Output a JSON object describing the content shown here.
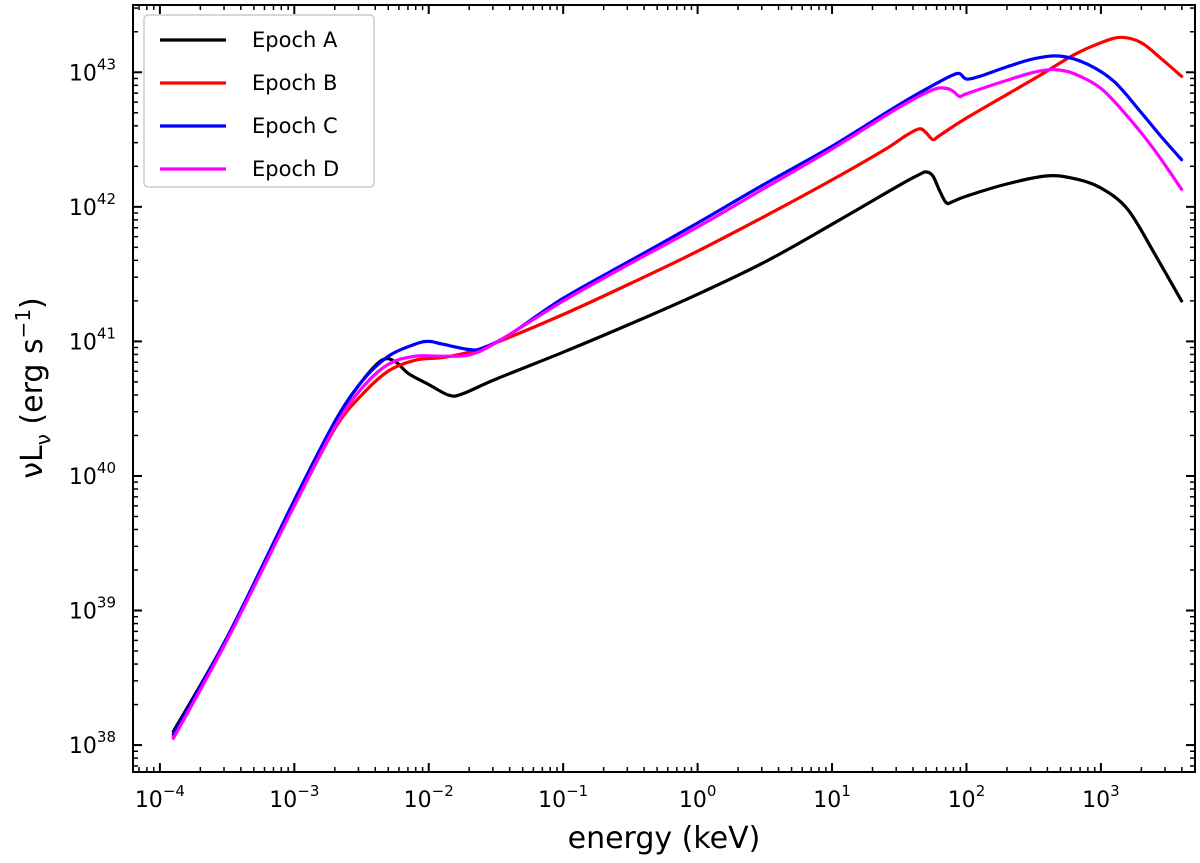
{
  "chart_data": {
    "type": "line",
    "xscale": "log",
    "yscale": "log",
    "xlabel": "energy (keV)",
    "ylabel_main": "νL",
    "ylabel_sub": "ν",
    "ylabel_unit_pre": " (erg s",
    "ylabel_unit_exp": "−1",
    "ylabel_unit_post": ")",
    "xlim_log10": [
      -4.2,
      3.7
    ],
    "ylim_log10": [
      37.8,
      43.5
    ],
    "x_tick_base": "10",
    "x_ticks": [
      {
        "exp": -4,
        "label": "−4"
      },
      {
        "exp": -3,
        "label": "−3"
      },
      {
        "exp": -2,
        "label": "−2"
      },
      {
        "exp": -1,
        "label": "−1"
      },
      {
        "exp": 0,
        "label": "0"
      },
      {
        "exp": 1,
        "label": "1"
      },
      {
        "exp": 2,
        "label": "2"
      },
      {
        "exp": 3,
        "label": "3"
      }
    ],
    "y_tick_base": "10",
    "y_ticks": [
      {
        "exp": 38,
        "label": "38"
      },
      {
        "exp": 39,
        "label": "39"
      },
      {
        "exp": 40,
        "label": "40"
      },
      {
        "exp": 41,
        "label": "41"
      },
      {
        "exp": 42,
        "label": "42"
      },
      {
        "exp": 43,
        "label": "43"
      }
    ],
    "legend_position": "top-left",
    "series": [
      {
        "name": "Epoch A",
        "color": "#000000",
        "points_log10": [
          [
            -3.9,
            38.1
          ],
          [
            -3.5,
            38.8
          ],
          [
            -3.0,
            39.8
          ],
          [
            -2.7,
            40.4
          ],
          [
            -2.5,
            40.7
          ],
          [
            -2.35,
            40.86
          ],
          [
            -2.25,
            40.85
          ],
          [
            -2.15,
            40.76
          ],
          [
            -2.0,
            40.68
          ],
          [
            -1.85,
            40.6
          ],
          [
            -1.75,
            40.61
          ],
          [
            -1.5,
            40.72
          ],
          [
            -1.0,
            40.92
          ],
          [
            -0.5,
            41.13
          ],
          [
            0.0,
            41.35
          ],
          [
            0.5,
            41.59
          ],
          [
            1.0,
            41.87
          ],
          [
            1.5,
            42.16
          ],
          [
            1.65,
            42.24
          ],
          [
            1.7,
            42.26
          ],
          [
            1.75,
            42.23
          ],
          [
            1.8,
            42.12
          ],
          [
            1.85,
            42.03
          ],
          [
            1.9,
            42.04
          ],
          [
            2.0,
            42.08
          ],
          [
            2.3,
            42.17
          ],
          [
            2.6,
            42.23
          ],
          [
            2.8,
            42.21
          ],
          [
            3.0,
            42.14
          ],
          [
            3.2,
            41.98
          ],
          [
            3.4,
            41.65
          ],
          [
            3.6,
            41.3
          ]
        ]
      },
      {
        "name": "Epoch B",
        "color": "#ff0000",
        "points_log10": [
          [
            -3.9,
            38.06
          ],
          [
            -3.5,
            38.8
          ],
          [
            -3.0,
            39.78
          ],
          [
            -2.7,
            40.35
          ],
          [
            -2.5,
            40.6
          ],
          [
            -2.3,
            40.78
          ],
          [
            -2.1,
            40.86
          ],
          [
            -1.9,
            40.88
          ],
          [
            -1.7,
            40.92
          ],
          [
            -1.5,
            40.99
          ],
          [
            -1.0,
            41.2
          ],
          [
            -0.5,
            41.43
          ],
          [
            0.0,
            41.67
          ],
          [
            0.5,
            41.93
          ],
          [
            1.0,
            42.2
          ],
          [
            1.4,
            42.43
          ],
          [
            1.55,
            42.53
          ],
          [
            1.65,
            42.58
          ],
          [
            1.7,
            42.55
          ],
          [
            1.75,
            42.5
          ],
          [
            1.8,
            42.53
          ],
          [
            2.0,
            42.66
          ],
          [
            2.5,
            42.95
          ],
          [
            2.8,
            43.13
          ],
          [
            3.0,
            43.22
          ],
          [
            3.15,
            43.26
          ],
          [
            3.3,
            43.22
          ],
          [
            3.45,
            43.1
          ],
          [
            3.6,
            42.97
          ]
        ]
      },
      {
        "name": "Epoch C",
        "color": "#0000ff",
        "points_log10": [
          [
            -3.9,
            38.08
          ],
          [
            -3.5,
            38.8
          ],
          [
            -3.0,
            39.82
          ],
          [
            -2.7,
            40.4
          ],
          [
            -2.5,
            40.7
          ],
          [
            -2.3,
            40.89
          ],
          [
            -2.1,
            40.98
          ],
          [
            -2.0,
            41.0
          ],
          [
            -1.9,
            40.98
          ],
          [
            -1.7,
            40.94
          ],
          [
            -1.6,
            40.95
          ],
          [
            -1.4,
            41.05
          ],
          [
            -1.0,
            41.32
          ],
          [
            -0.5,
            41.6
          ],
          [
            0.0,
            41.88
          ],
          [
            0.5,
            42.17
          ],
          [
            1.0,
            42.45
          ],
          [
            1.5,
            42.76
          ],
          [
            1.8,
            42.93
          ],
          [
            1.9,
            42.98
          ],
          [
            1.95,
            42.99
          ],
          [
            2.0,
            42.95
          ],
          [
            2.1,
            42.97
          ],
          [
            2.3,
            43.04
          ],
          [
            2.5,
            43.1
          ],
          [
            2.7,
            43.12
          ],
          [
            2.9,
            43.06
          ],
          [
            3.1,
            42.93
          ],
          [
            3.3,
            42.7
          ],
          [
            3.45,
            42.52
          ],
          [
            3.6,
            42.35
          ]
        ]
      },
      {
        "name": "Epoch D",
        "color": "#ff00ff",
        "points_log10": [
          [
            -3.9,
            38.05
          ],
          [
            -3.5,
            38.78
          ],
          [
            -3.0,
            39.78
          ],
          [
            -2.7,
            40.36
          ],
          [
            -2.5,
            40.65
          ],
          [
            -2.3,
            40.83
          ],
          [
            -2.1,
            40.89
          ],
          [
            -1.9,
            40.89
          ],
          [
            -1.7,
            40.9
          ],
          [
            -1.5,
            40.99
          ],
          [
            -1.0,
            41.3
          ],
          [
            -0.5,
            41.58
          ],
          [
            0.0,
            41.85
          ],
          [
            0.5,
            42.14
          ],
          [
            1.0,
            42.43
          ],
          [
            1.5,
            42.74
          ],
          [
            1.75,
            42.87
          ],
          [
            1.85,
            42.88
          ],
          [
            1.9,
            42.86
          ],
          [
            1.95,
            42.82
          ],
          [
            2.0,
            42.84
          ],
          [
            2.3,
            42.94
          ],
          [
            2.5,
            43.0
          ],
          [
            2.65,
            43.02
          ],
          [
            2.8,
            42.99
          ],
          [
            3.0,
            42.88
          ],
          [
            3.2,
            42.67
          ],
          [
            3.4,
            42.42
          ],
          [
            3.6,
            42.13
          ]
        ]
      }
    ]
  }
}
